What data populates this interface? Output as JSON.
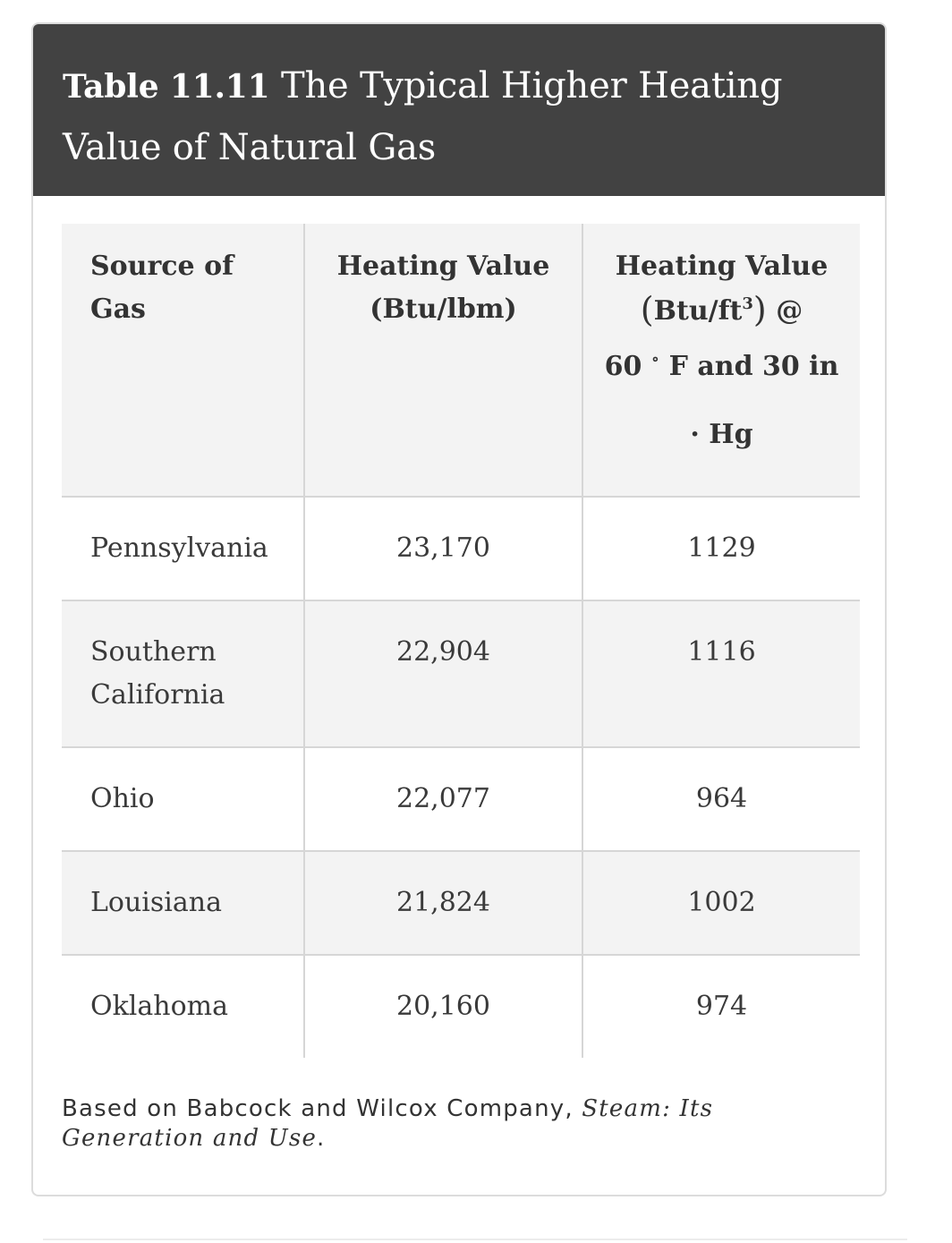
{
  "caption": {
    "number": "Table 11.11",
    "title": "The Typical Higher Heating Value of Natural Gas"
  },
  "table": {
    "headers": {
      "source": "Source of Gas",
      "per_mass": "Heating Value (Btu/lbm)",
      "per_volume_label": "Heating Value",
      "per_volume_units_open": "(",
      "per_volume_units_base": "Btu/ft",
      "per_volume_units_exp": "3",
      "per_volume_units_close": ")",
      "per_volume_at": "@",
      "per_volume_cond1_prefix": "60",
      "per_volume_cond1_degree": "∘",
      "per_volume_cond1_suffix": "F and 30 in",
      "per_volume_cond2": "· Hg"
    },
    "rows": [
      {
        "source": "Pennsylvania",
        "btu_lbm": "23,170",
        "btu_ft3": "1129"
      },
      {
        "source": "Southern California",
        "btu_lbm": "22,904",
        "btu_ft3": "1116"
      },
      {
        "source": "Ohio",
        "btu_lbm": "22,077",
        "btu_ft3": "964"
      },
      {
        "source": "Louisiana",
        "btu_lbm": "21,824",
        "btu_ft3": "1002"
      },
      {
        "source": "Oklahoma",
        "btu_lbm": "20,160",
        "btu_ft3": "974"
      }
    ]
  },
  "footnote": {
    "prefix": "Based on Babcock and Wilcox Company, ",
    "italic": "Steam: Its Generation and Use",
    "suffix": "."
  }
}
